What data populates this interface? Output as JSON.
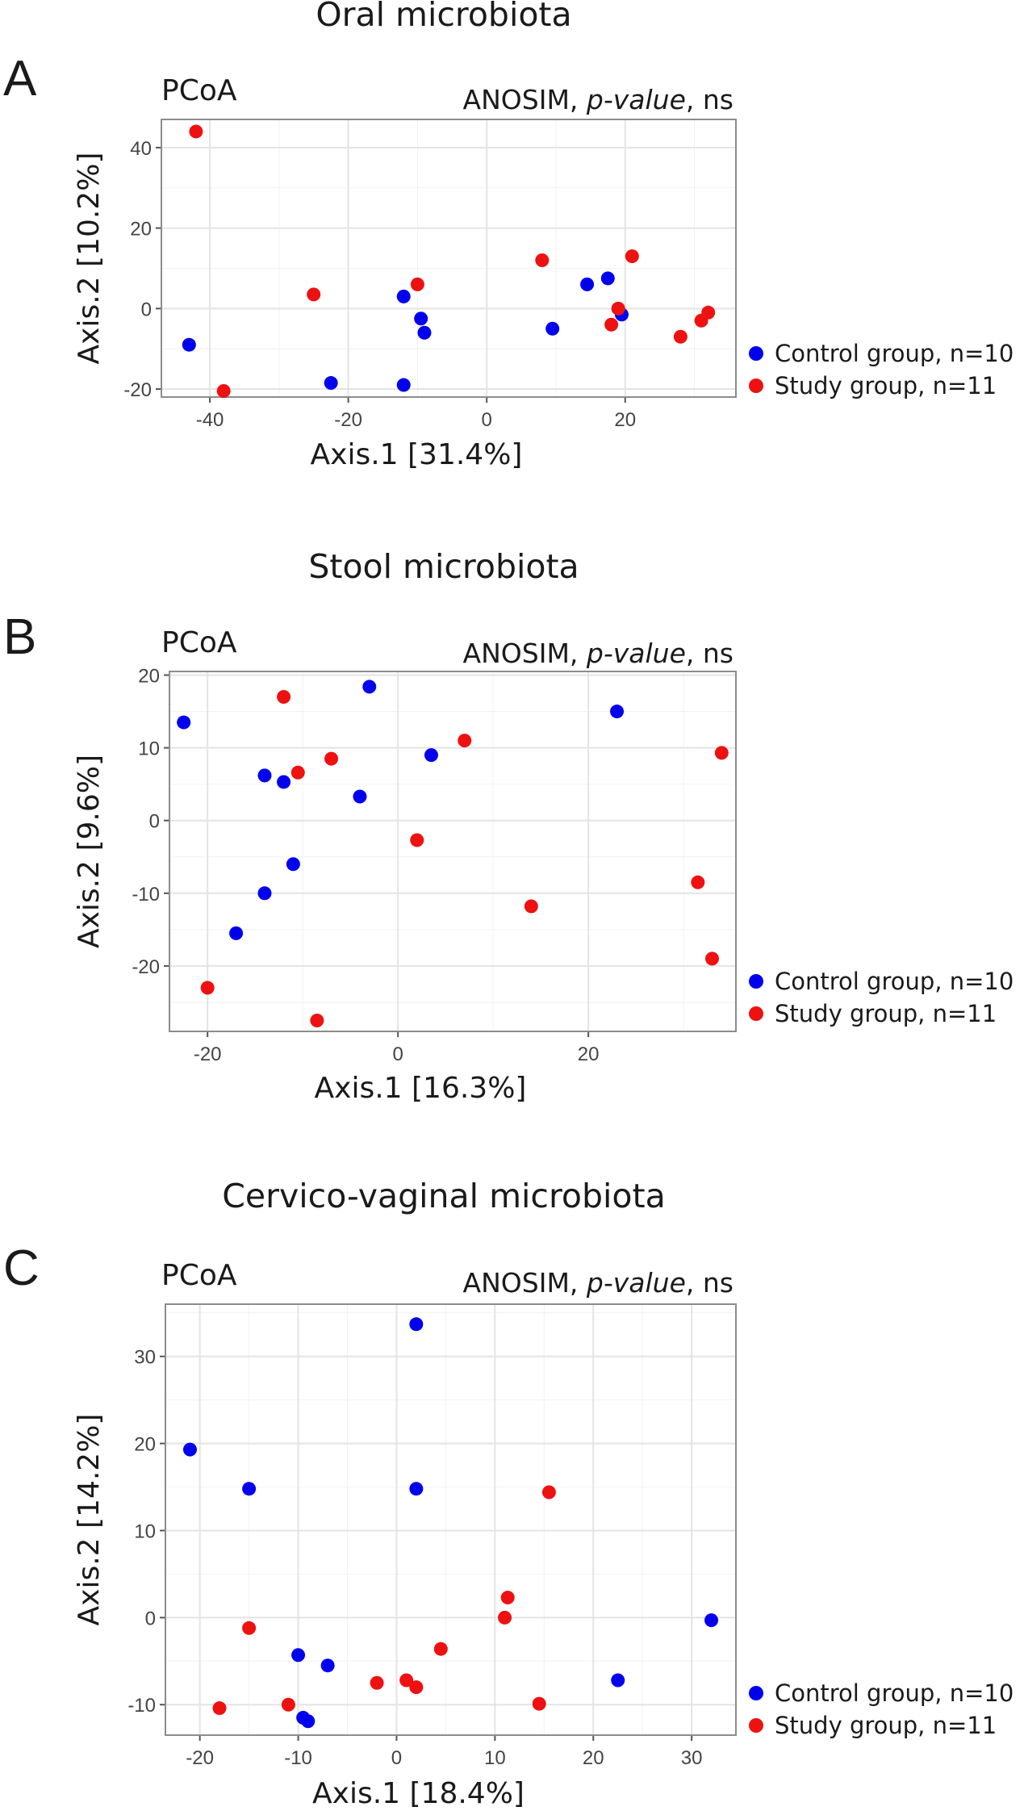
{
  "figure": {
    "colors": {
      "control": "#0000ee",
      "study": "#ee1111"
    },
    "legend": {
      "control": "Control group, n=10",
      "study": "Study group, n=11"
    },
    "panels": [
      {
        "letter": "A",
        "title": "Oral microbiota",
        "pcoa": "PCoA",
        "anosim_pre": "ANOSIM, ",
        "anosim_italic": "p-value",
        "anosim_post": ", ns"
      },
      {
        "letter": "B",
        "title": "Stool microbiota",
        "pcoa": "PCoA",
        "anosim_pre": "ANOSIM, ",
        "anosim_italic": "p-value",
        "anosim_post": ", ns"
      },
      {
        "letter": "C",
        "title": "Cervico-vaginal microbiota",
        "pcoa": "PCoA",
        "anosim_pre": "ANOSIM, ",
        "anosim_italic": "p-value",
        "anosim_post": ", ns"
      }
    ]
  },
  "chart_data": [
    {
      "type": "scatter",
      "title": "Oral microbiota",
      "xlabel": "Axis.1   [31.4%]",
      "ylabel": "Axis.2   [10.2%]",
      "xlim": [
        -47,
        36
      ],
      "ylim": [
        -22,
        47
      ],
      "xticks": [
        -40,
        -20,
        0,
        20
      ],
      "yticks": [
        -20,
        0,
        20,
        40
      ],
      "series": [
        {
          "name": "Control group, n=10",
          "color": "#0000ee",
          "points": [
            [
              -43,
              -9
            ],
            [
              -22.5,
              -18.5
            ],
            [
              -12,
              3
            ],
            [
              -12,
              -19
            ],
            [
              -9.5,
              -2.5
            ],
            [
              -9,
              -6
            ],
            [
              9.5,
              -5
            ],
            [
              14.5,
              6
            ],
            [
              17.5,
              7.5
            ],
            [
              19.5,
              -1.5
            ]
          ]
        },
        {
          "name": "Study group, n=11",
          "color": "#ee1111",
          "points": [
            [
              -42,
              44
            ],
            [
              -38,
              -20.5
            ],
            [
              -25,
              3.5
            ],
            [
              -10,
              6
            ],
            [
              8,
              12
            ],
            [
              18,
              -4
            ],
            [
              19,
              0
            ],
            [
              21,
              13
            ],
            [
              28,
              -7
            ],
            [
              31,
              -3
            ],
            [
              32,
              -1
            ]
          ]
        }
      ]
    },
    {
      "type": "scatter",
      "title": "Stool microbiota",
      "xlabel": "Axis.1   [16.3%]",
      "ylabel": "Axis.2   [9.6%]",
      "xlim": [
        -24,
        35.5
      ],
      "ylim": [
        -29,
        20.5
      ],
      "xticks": [
        -20,
        0,
        20
      ],
      "yticks": [
        -20,
        -10,
        0,
        10,
        20
      ],
      "series": [
        {
          "name": "Control group, n=10",
          "color": "#0000ee",
          "points": [
            [
              -22.5,
              13.5
            ],
            [
              -17,
              -15.5
            ],
            [
              -14,
              6.2
            ],
            [
              -14,
              -10
            ],
            [
              -12,
              5.3
            ],
            [
              -11,
              -6
            ],
            [
              -4,
              3.3
            ],
            [
              -3,
              18.4
            ],
            [
              3.5,
              9
            ],
            [
              23,
              15
            ]
          ]
        },
        {
          "name": "Study group, n=11",
          "color": "#ee1111",
          "points": [
            [
              -20,
              -23
            ],
            [
              -12,
              17
            ],
            [
              -10.5,
              6.6
            ],
            [
              -7,
              8.5
            ],
            [
              -8.5,
              -27.5
            ],
            [
              2,
              -2.7
            ],
            [
              7,
              11
            ],
            [
              14,
              -11.8
            ],
            [
              31.5,
              -8.5
            ],
            [
              33,
              -19
            ],
            [
              34,
              9.3
            ]
          ]
        }
      ]
    },
    {
      "type": "scatter",
      "title": "Cervico-vaginal microbiota",
      "xlabel": "Axis.1   [18.4%]",
      "ylabel": "Axis.2   [14.2%]",
      "xlim": [
        -23.5,
        34.5
      ],
      "ylim": [
        -13.5,
        36
      ],
      "xticks": [
        -20,
        -10,
        0,
        10,
        20,
        30
      ],
      "yticks": [
        -10,
        0,
        10,
        20,
        30
      ],
      "series": [
        {
          "name": "Control group, n=10",
          "color": "#0000ee",
          "points": [
            [
              -21,
              19.3
            ],
            [
              -15,
              14.8
            ],
            [
              -10,
              -4.3
            ],
            [
              -9.5,
              -11.5
            ],
            [
              -9,
              -11.9
            ],
            [
              -7,
              -5.5
            ],
            [
              2,
              33.7
            ],
            [
              2,
              14.8
            ],
            [
              22.5,
              -7.2
            ],
            [
              32,
              -0.3
            ]
          ]
        },
        {
          "name": "Study group, n=11",
          "color": "#ee1111",
          "points": [
            [
              -18,
              -10.4
            ],
            [
              -15,
              -1.2
            ],
            [
              -11,
              -10
            ],
            [
              -2,
              -7.5
            ],
            [
              1,
              -7.2
            ],
            [
              2,
              -8
            ],
            [
              4.5,
              -3.6
            ],
            [
              11,
              0
            ],
            [
              11.3,
              2.3
            ],
            [
              14.5,
              -9.9
            ],
            [
              15.5,
              14.4
            ]
          ]
        }
      ]
    }
  ]
}
